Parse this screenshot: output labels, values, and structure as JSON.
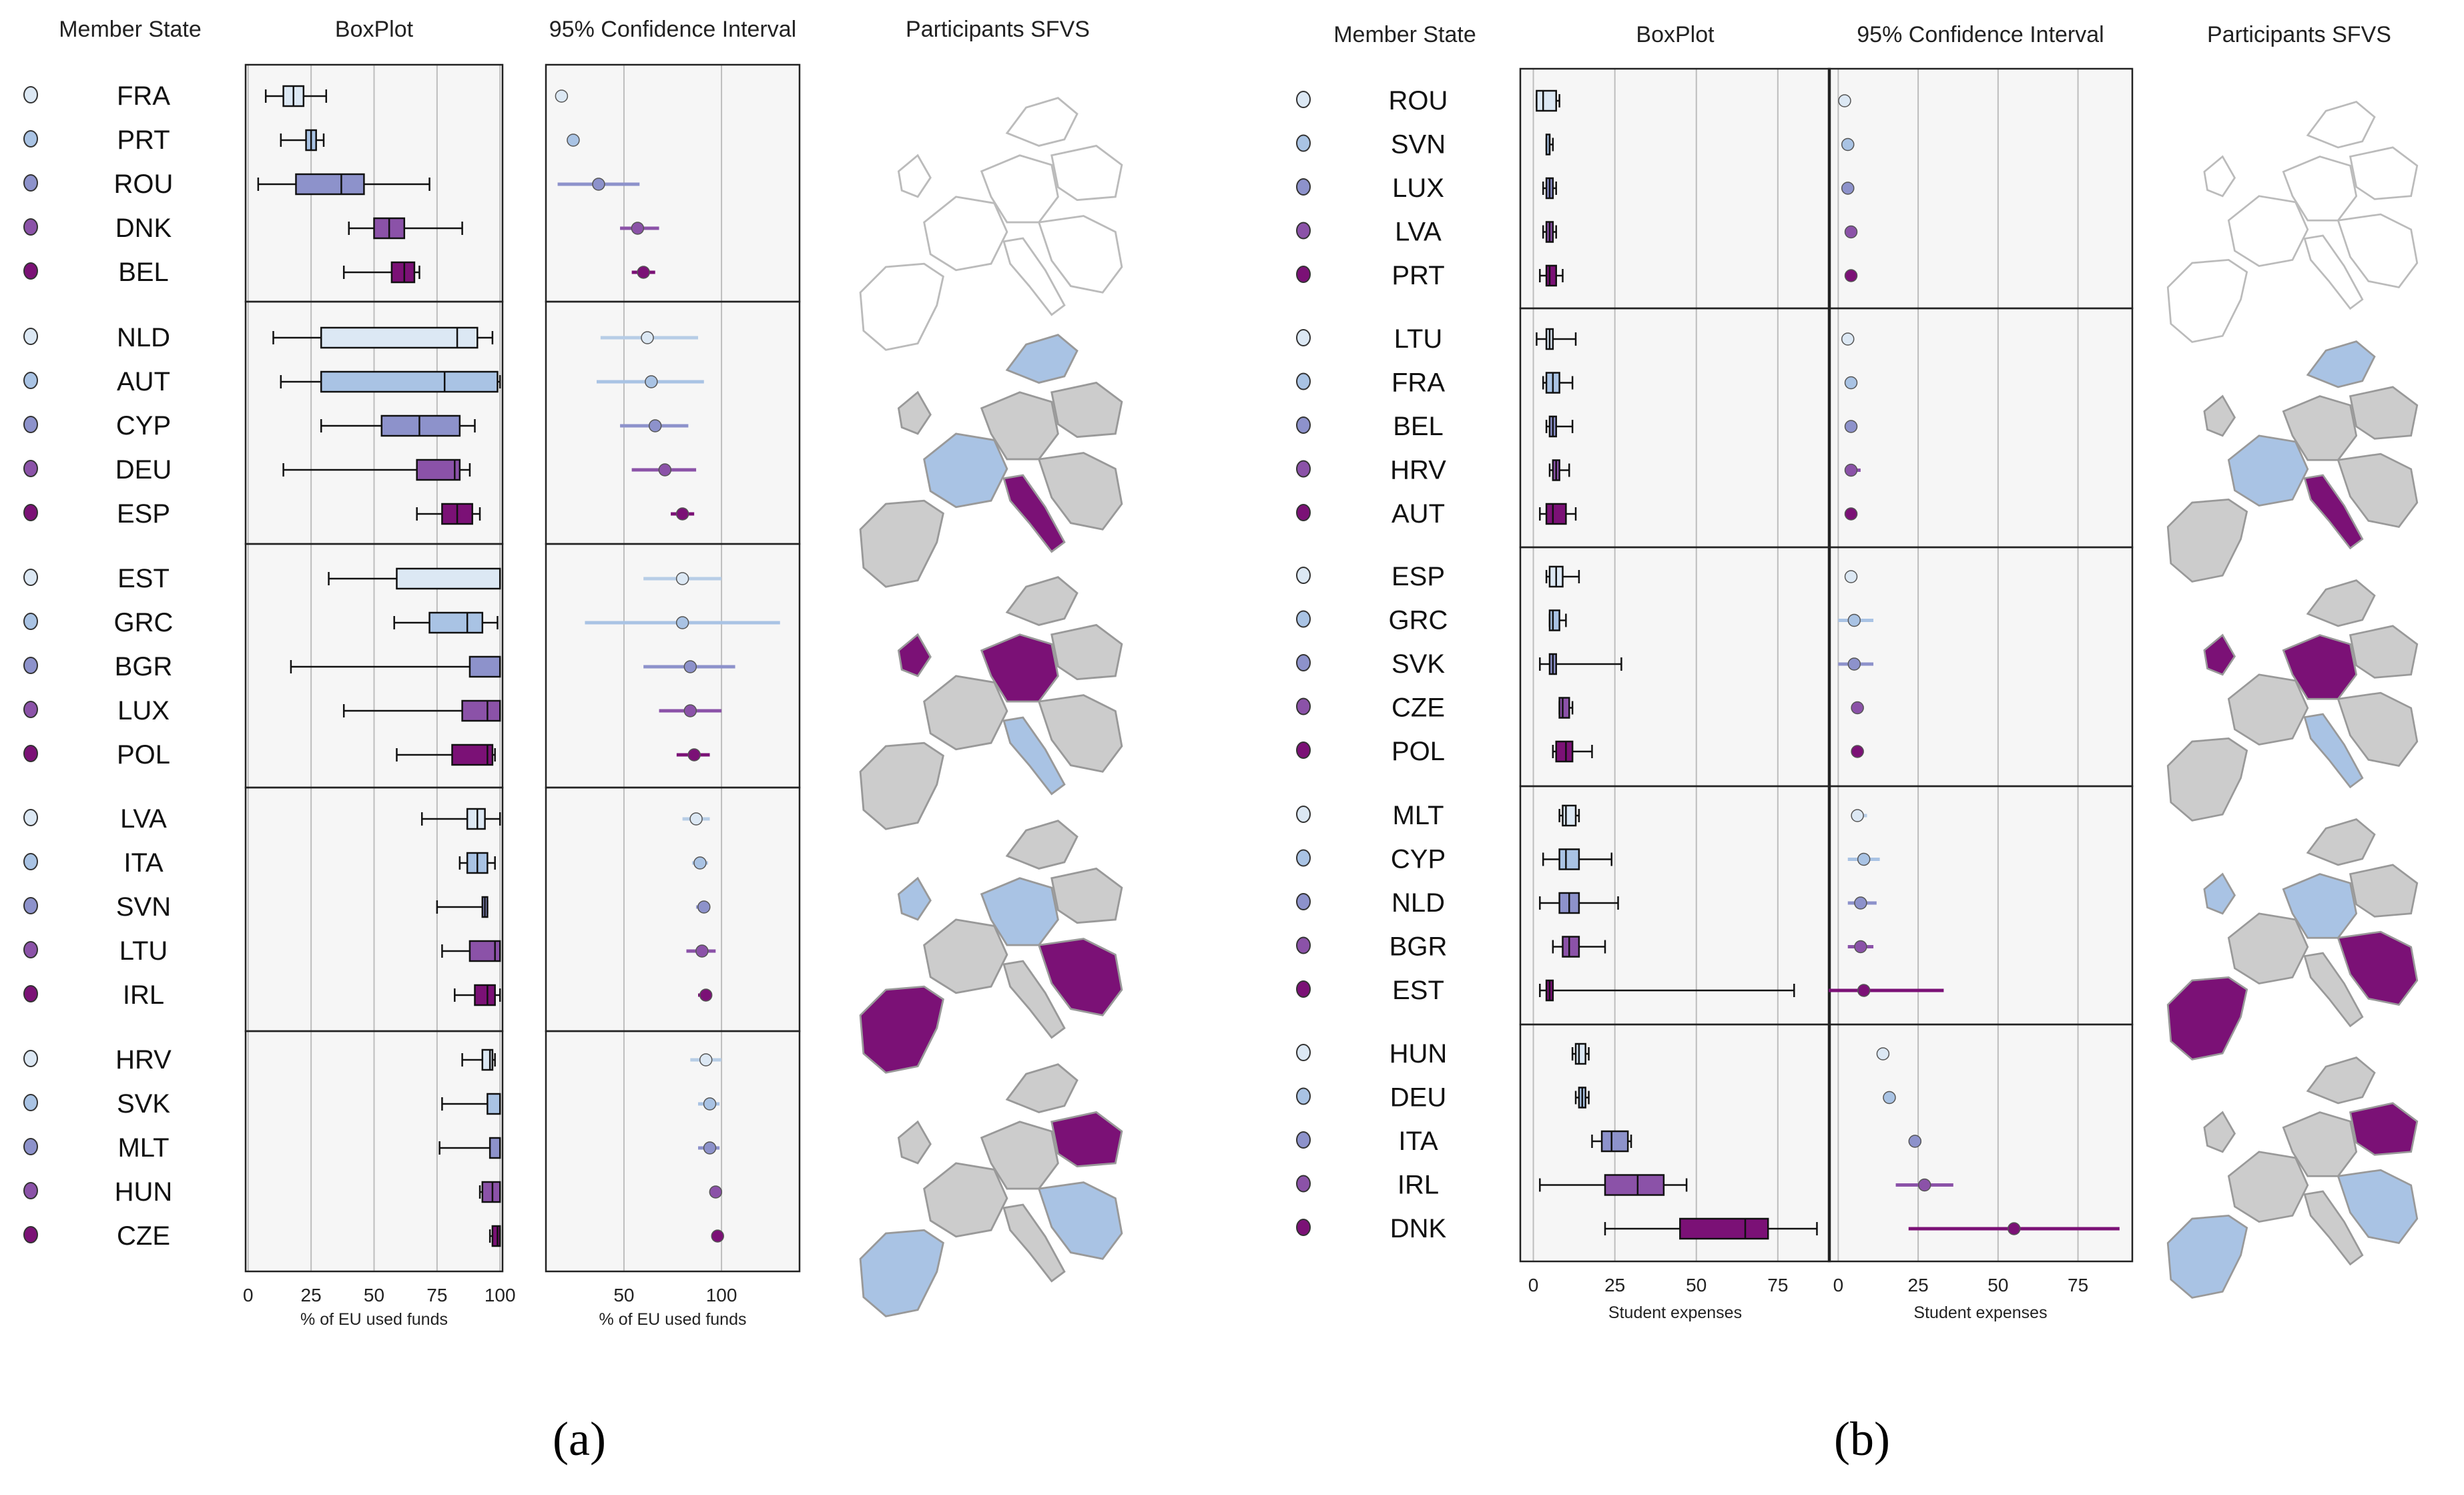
{
  "palette": [
    "#dce8f4",
    "#a9c3e4",
    "#8d92cb",
    "#8b52a8",
    "#7b1176"
  ],
  "chart_data": [
    {
      "type": "boxplot-panel",
      "panel_label": "(a)",
      "headers": {
        "member_state": "Member State",
        "boxplot": "BoxPlot",
        "ci": "95% Confidence Interval",
        "map": "Participants SFVS"
      },
      "xlabel_box": "% of EU used funds",
      "xlabel_ci": "% of EU used funds",
      "box_range": [
        -1,
        101
      ],
      "box_ticks": [
        0,
        25,
        50,
        75,
        100
      ],
      "ci_range": [
        10,
        140
      ],
      "ci_ticks": [
        50,
        100
      ],
      "groups": [
        {
          "rows": [
            {
              "code": "FRA",
              "box": [
                7,
                14,
                18,
                22,
                31
              ],
              "ci": [
                16,
                18,
                20
              ]
            },
            {
              "code": "PRT",
              "box": [
                13,
                23,
                25,
                27,
                30
              ],
              "ci": [
                22,
                24,
                26
              ]
            },
            {
              "code": "ROU",
              "box": [
                4,
                19,
                37,
                46,
                72
              ],
              "ci": [
                16,
                37,
                58
              ]
            },
            {
              "code": "DNK",
              "box": [
                40,
                50,
                56,
                62,
                85
              ],
              "ci": [
                48,
                57,
                68
              ]
            },
            {
              "code": "BEL",
              "box": [
                38,
                57,
                62,
                66,
                68
              ],
              "ci": [
                54,
                60,
                66
              ]
            }
          ]
        },
        {
          "rows": [
            {
              "code": "NLD",
              "box": [
                10,
                29,
                83,
                91,
                97
              ],
              "ci": [
                38,
                62,
                88
              ]
            },
            {
              "code": "AUT",
              "box": [
                13,
                29,
                78,
                99,
                100
              ],
              "ci": [
                36,
                64,
                91
              ]
            },
            {
              "code": "CYP",
              "box": [
                29,
                53,
                68,
                84,
                90
              ],
              "ci": [
                48,
                66,
                83
              ]
            },
            {
              "code": "DEU",
              "box": [
                14,
                67,
                82,
                84,
                88
              ],
              "ci": [
                54,
                71,
                87
              ]
            },
            {
              "code": "ESP",
              "box": [
                67,
                77,
                83,
                89,
                92
              ],
              "ci": [
                74,
                80,
                86
              ]
            }
          ]
        },
        {
          "rows": [
            {
              "code": "EST",
              "box": [
                32,
                59,
                100,
                100,
                100
              ],
              "ci": [
                60,
                80,
                100
              ]
            },
            {
              "code": "GRC",
              "box": [
                58,
                72,
                87,
                93,
                99
              ],
              "ci": [
                30,
                80,
                130
              ]
            },
            {
              "code": "BGR",
              "box": [
                17,
                88,
                100,
                100,
                100
              ],
              "ci": [
                60,
                84,
                107
              ]
            },
            {
              "code": "LUX",
              "box": [
                38,
                85,
                95,
                100,
                100
              ],
              "ci": [
                68,
                84,
                100
              ]
            },
            {
              "code": "POL",
              "box": [
                59,
                81,
                95,
                97,
                98
              ],
              "ci": [
                77,
                86,
                94
              ]
            }
          ]
        },
        {
          "rows": [
            {
              "code": "LVA",
              "box": [
                69,
                87,
                91,
                94,
                100
              ],
              "ci": [
                80,
                87,
                94
              ]
            },
            {
              "code": "ITA",
              "box": [
                84,
                87,
                91,
                95,
                98
              ],
              "ci": [
                85,
                89,
                93
              ]
            },
            {
              "code": "SVN",
              "box": [
                75,
                93,
                94,
                95,
                95
              ],
              "ci": [
                87,
                91,
                94
              ]
            },
            {
              "code": "LTU",
              "box": [
                77,
                88,
                98,
                100,
                100
              ],
              "ci": [
                82,
                90,
                97
              ]
            },
            {
              "code": "IRL",
              "box": [
                82,
                90,
                95,
                98,
                100
              ],
              "ci": [
                88,
                92,
                95
              ]
            }
          ]
        },
        {
          "rows": [
            {
              "code": "HRV",
              "box": [
                85,
                93,
                96,
                97,
                98
              ],
              "ci": [
                84,
                92,
                100
              ]
            },
            {
              "code": "SVK",
              "box": [
                77,
                95,
                100,
                100,
                100
              ],
              "ci": [
                88,
                94,
                99
              ]
            },
            {
              "code": "MLT",
              "box": [
                76,
                96,
                100,
                100,
                100
              ],
              "ci": [
                88,
                94,
                99
              ]
            },
            {
              "code": "HUN",
              "box": [
                92,
                93,
                97,
                100,
                100
              ],
              "ci": [
                95,
                97,
                99
              ]
            },
            {
              "code": "CZE",
              "box": [
                96,
                97,
                99,
                100,
                100
              ],
              "ci": [
                96,
                98,
                99
              ]
            }
          ]
        }
      ]
    },
    {
      "type": "boxplot-panel",
      "panel_label": "(b)",
      "headers": {
        "member_state": "Member State",
        "boxplot": "BoxPlot",
        "ci": "95% Confidence Interval",
        "map": "Participants SFVS"
      },
      "xlabel_box": "Student expenses",
      "xlabel_ci": "Student expenses",
      "box_range": [
        -4,
        91
      ],
      "box_ticks": [
        0,
        25,
        50,
        75
      ],
      "ci_range": [
        -3,
        92
      ],
      "ci_ticks": [
        0,
        25,
        50,
        75
      ],
      "groups": [
        {
          "rows": [
            {
              "code": "ROU",
              "box": [
                1,
                1,
                3,
                7,
                8
              ],
              "ci": [
                1,
                2,
                4
              ]
            },
            {
              "code": "SVN",
              "box": [
                4,
                4,
                5,
                5,
                6
              ],
              "ci": [
                2,
                3,
                5
              ]
            },
            {
              "code": "LUX",
              "box": [
                3,
                4,
                5,
                6,
                7
              ],
              "ci": [
                3,
                3,
                5
              ]
            },
            {
              "code": "LVA",
              "box": [
                3,
                4,
                5,
                6,
                7
              ],
              "ci": [
                3,
                4,
                5
              ]
            },
            {
              "code": "PRT",
              "box": [
                2,
                4,
                5,
                7,
                9
              ],
              "ci": [
                3,
                4,
                5
              ]
            }
          ]
        },
        {
          "rows": [
            {
              "code": "LTU",
              "box": [
                1,
                4,
                5,
                6,
                13
              ],
              "ci": [
                2,
                3,
                5
              ]
            },
            {
              "code": "FRA",
              "box": [
                3,
                4,
                6,
                8,
                12
              ],
              "ci": [
                3,
                4,
                5
              ]
            },
            {
              "code": "BEL",
              "box": [
                4,
                5,
                6,
                7,
                12
              ],
              "ci": [
                3,
                4,
                5
              ]
            },
            {
              "code": "HRV",
              "box": [
                5,
                6,
                7,
                8,
                11
              ],
              "ci": [
                2,
                4,
                7
              ]
            },
            {
              "code": "AUT",
              "box": [
                2,
                4,
                6,
                10,
                13
              ],
              "ci": [
                2,
                4,
                6
              ]
            }
          ]
        },
        {
          "rows": [
            {
              "code": "ESP",
              "box": [
                4,
                5,
                7,
                9,
                14
              ],
              "ci": [
                3,
                4,
                6
              ]
            },
            {
              "code": "GRC",
              "box": [
                5,
                5,
                6,
                8,
                10
              ],
              "ci": [
                0,
                5,
                11
              ]
            },
            {
              "code": "SVK",
              "box": [
                2,
                5,
                6,
                7,
                27
              ],
              "ci": [
                0,
                5,
                11
              ]
            },
            {
              "code": "CZE",
              "box": [
                8,
                8,
                9,
                11,
                12
              ],
              "ci": [
                5,
                6,
                8
              ]
            },
            {
              "code": "POL",
              "box": [
                6,
                7,
                10,
                12,
                18
              ],
              "ci": [
                5,
                6,
                8
              ]
            }
          ]
        },
        {
          "rows": [
            {
              "code": "MLT",
              "box": [
                8,
                9,
                10,
                13,
                14
              ],
              "ci": [
                5,
                6,
                9
              ]
            },
            {
              "code": "CYP",
              "box": [
                3,
                8,
                10,
                14,
                24
              ],
              "ci": [
                3,
                8,
                13
              ]
            },
            {
              "code": "NLD",
              "box": [
                2,
                8,
                11,
                14,
                26
              ],
              "ci": [
                3,
                7,
                12
              ]
            },
            {
              "code": "BGR",
              "box": [
                6,
                9,
                11,
                14,
                22
              ],
              "ci": [
                3,
                7,
                11
              ]
            },
            {
              "code": "EST",
              "box": [
                2,
                4,
                5,
                6,
                80
              ],
              "ci": [
                -3,
                8,
                33
              ]
            }
          ]
        },
        {
          "rows": [
            {
              "code": "HUN",
              "box": [
                12,
                13,
                14,
                16,
                17
              ],
              "ci": [
                12,
                14,
                16
              ]
            },
            {
              "code": "DEU",
              "box": [
                13,
                14,
                15,
                16,
                17
              ],
              "ci": [
                14,
                16,
                17
              ]
            },
            {
              "code": "ITA",
              "box": [
                18,
                21,
                24,
                29,
                30
              ],
              "ci": [
                22,
                24,
                26
              ]
            },
            {
              "code": "IRL",
              "box": [
                2,
                22,
                32,
                40,
                47
              ],
              "ci": [
                18,
                27,
                36
              ]
            },
            {
              "code": "DNK",
              "box": [
                22,
                45,
                65,
                72,
                87
              ],
              "ci": [
                22,
                55,
                88
              ]
            }
          ]
        }
      ]
    }
  ]
}
